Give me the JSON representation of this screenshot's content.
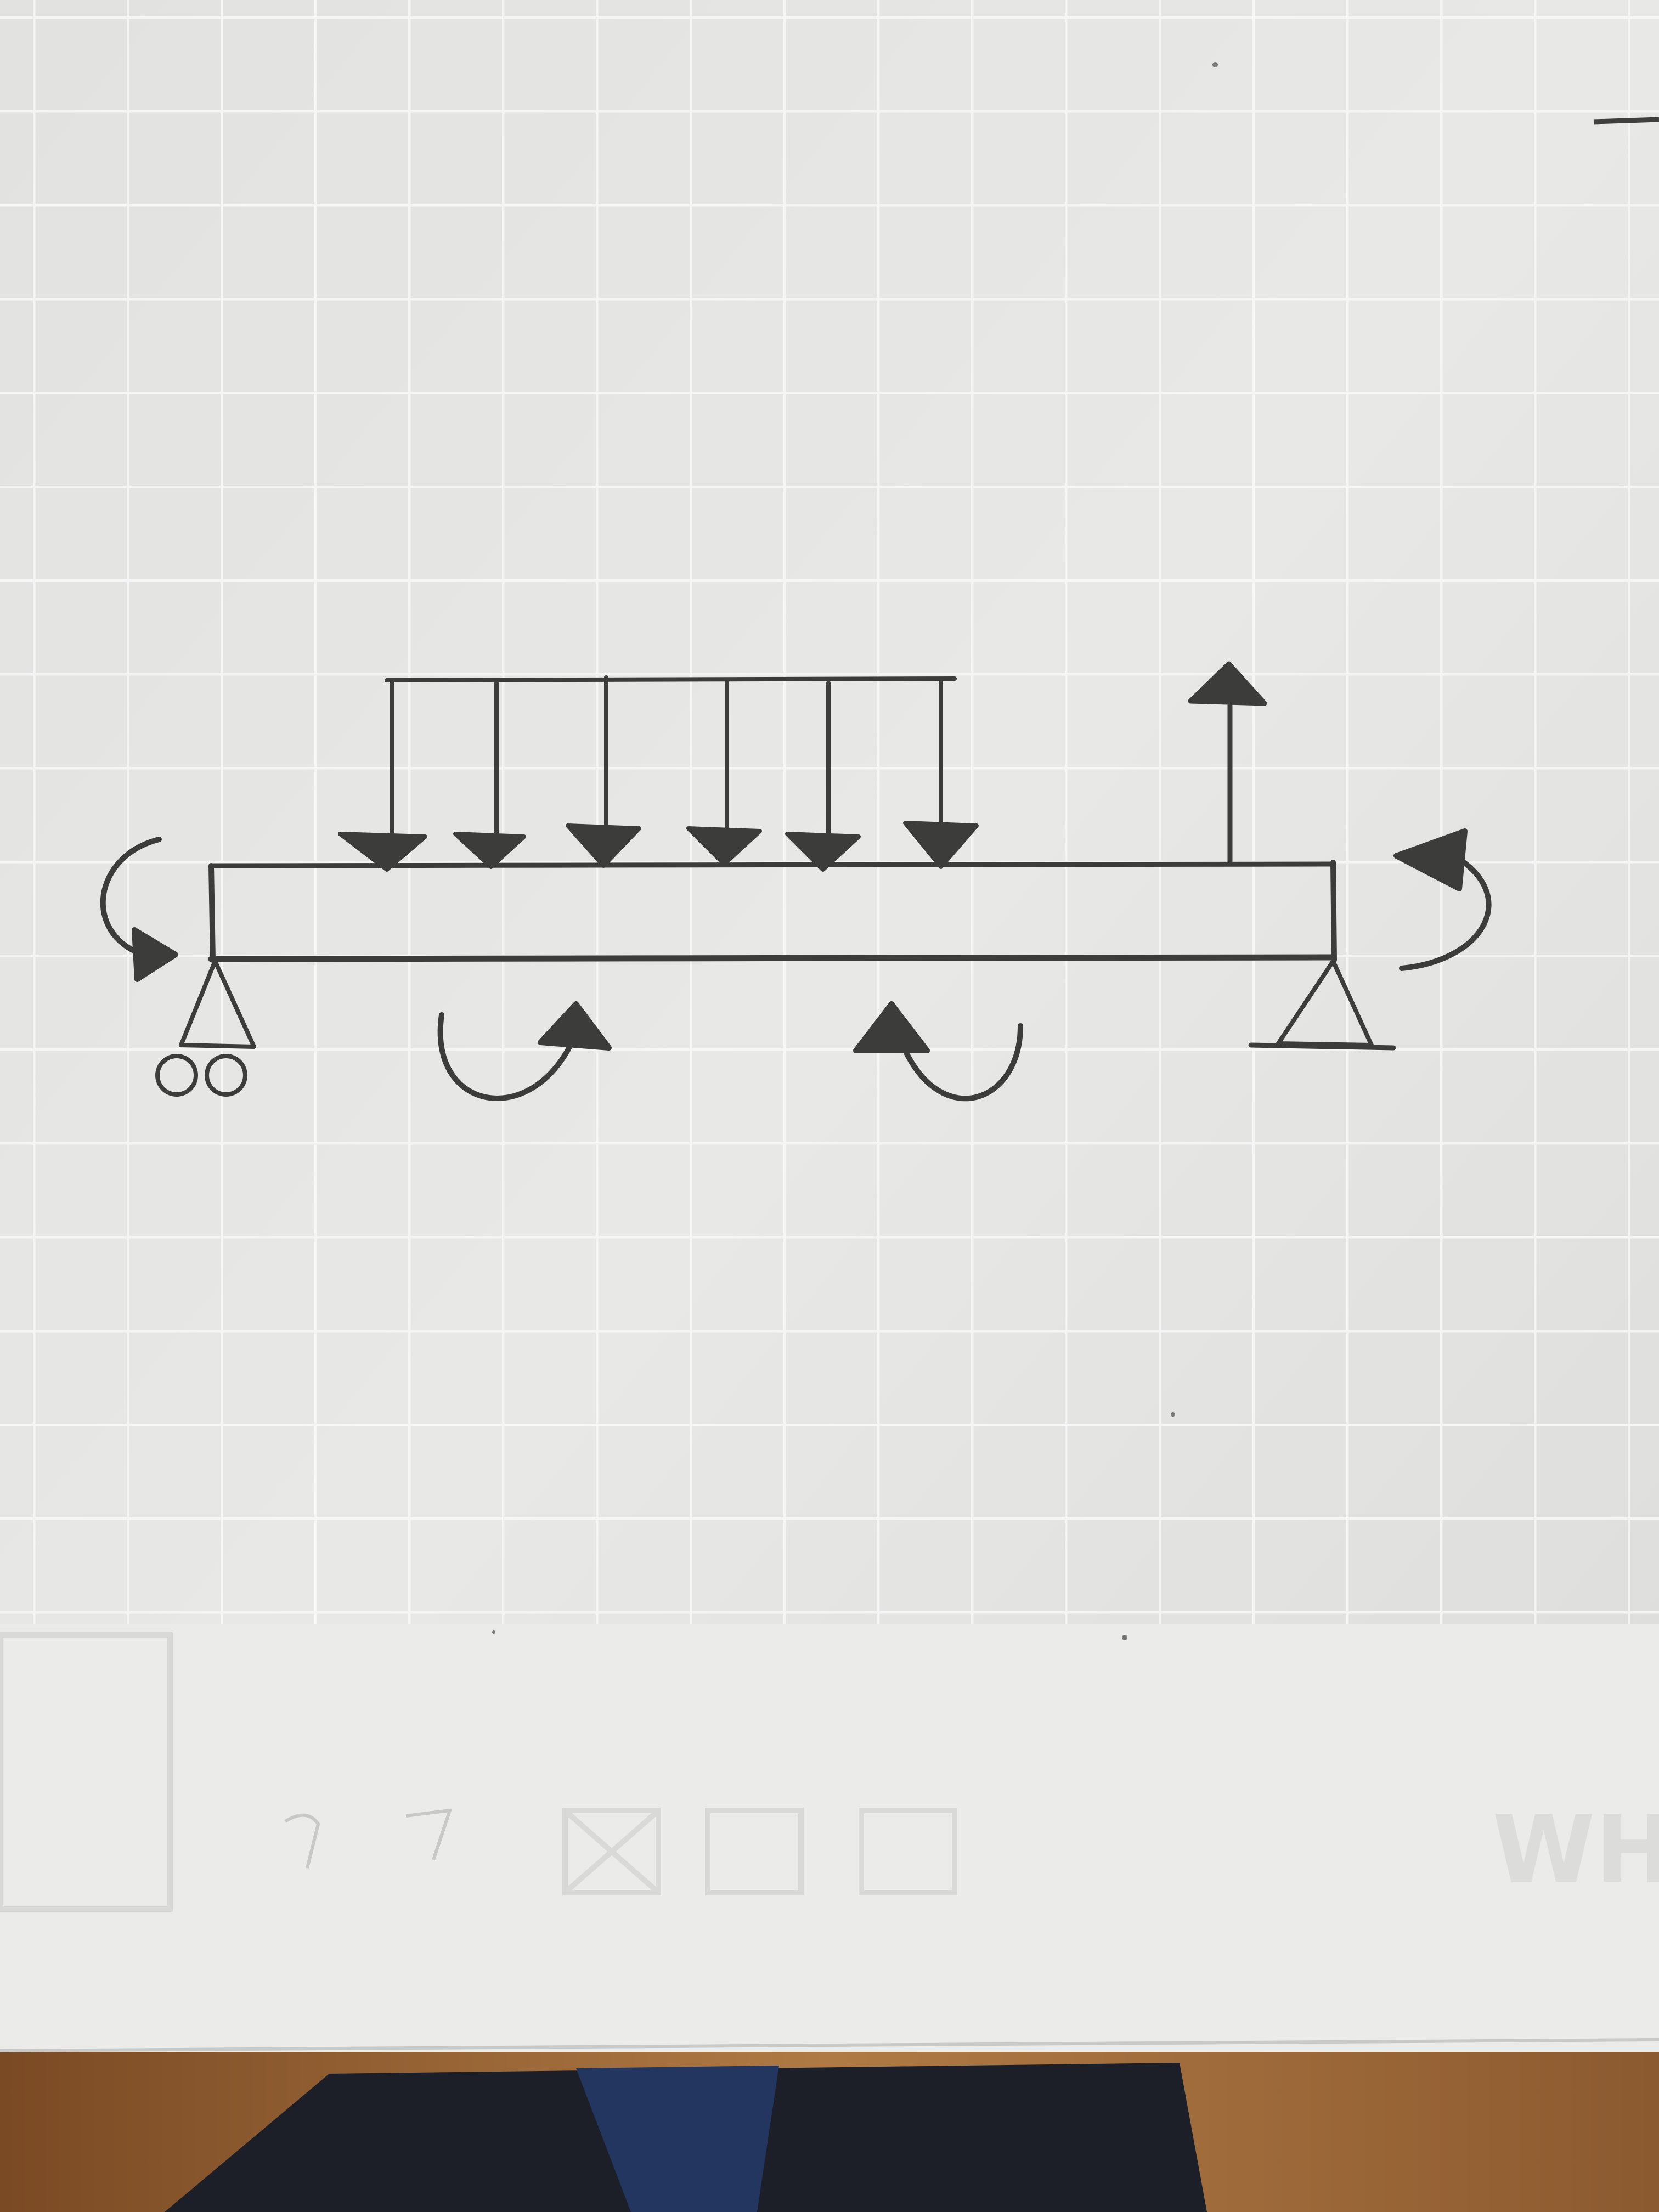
{
  "scene": {
    "description_type": "photo",
    "colors": {
      "paper": "#e4e4e2",
      "paper_light": "#eeeeec",
      "grid": "#f7f7f7",
      "pencil": "#3f3f3d",
      "pencil_light": "#6a6a68",
      "wood": "#a8733f",
      "wood_dark": "#6e4423",
      "cloth": "#1d2230",
      "cloth_blue": "#24365c",
      "faint_print": "#d6d6d4"
    },
    "drawing": {
      "beam": "simply-supported-beam",
      "supports": [
        "roller-support",
        "pin-support"
      ],
      "distributed_load_arrows": 6,
      "upward_force_arrows": 1,
      "moment_arrows": 4
    }
  }
}
